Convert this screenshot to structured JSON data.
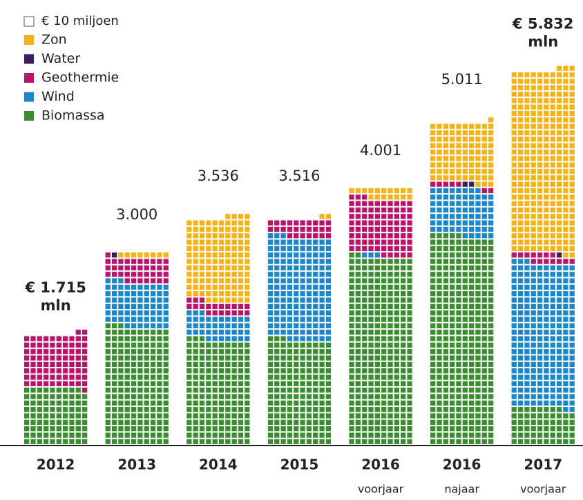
{
  "chart_data": {
    "type": "waffle",
    "unit_label": "€ 10 miljoen",
    "square_value": 10,
    "categories": [
      "2012",
      "2013",
      "2014",
      "2015",
      "2016",
      "2016",
      "2017"
    ],
    "sublabels": [
      null,
      null,
      null,
      null,
      "voorjaar",
      "najaar",
      "voorjaar"
    ],
    "totals": [
      1715,
      3000,
      3536,
      3516,
      4001,
      5011,
      5832
    ],
    "total_labels": [
      "€ 1.715 mln",
      "3.000",
      "3.536",
      "3.516",
      "4.001",
      "5.011",
      "€ 5.832 mln"
    ],
    "series": [
      {
        "name": "Zon",
        "color": "#f5b31a",
        "values": [
          0,
          80,
          1306,
          20,
          171,
          941,
          2852
        ]
      },
      {
        "name": "Water",
        "color": "#3a1f5c",
        "values": [
          0,
          10,
          0,
          0,
          0,
          20,
          10
        ]
      },
      {
        "name": "Geothermie",
        "color": "#b8146b",
        "values": [
          830,
          380,
          200,
          266,
          880,
          70,
          140
        ]
      },
      {
        "name": "Wind",
        "color": "#1b86c8",
        "values": [
          0,
          700,
          400,
          1600,
          30,
          730,
          2250
        ]
      },
      {
        "name": "Biomassa",
        "color": "#3b8e2f",
        "values": [
          885,
          1830,
          1630,
          1630,
          2920,
          3250,
          580
        ]
      }
    ]
  }
}
